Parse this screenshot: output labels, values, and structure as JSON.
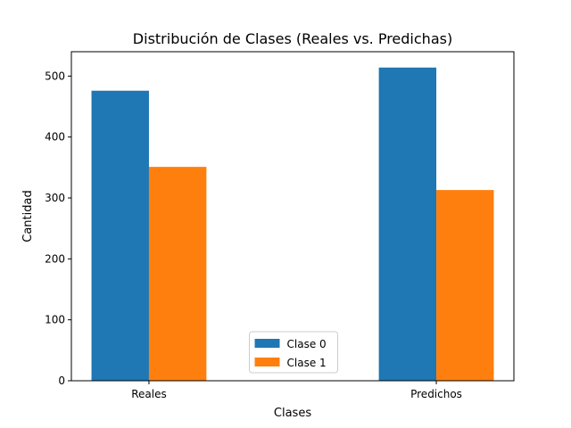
{
  "chart_data": {
    "type": "bar",
    "title": "Distribución de Clases (Reales vs. Predichas)",
    "xlabel": "Clases",
    "ylabel": "Cantidad",
    "categories": [
      "Reales",
      "Predichos"
    ],
    "series": [
      {
        "name": "Clase 0",
        "values": [
          476,
          514
        ],
        "color": "#1f77b4"
      },
      {
        "name": "Clase 1",
        "values": [
          351,
          313
        ],
        "color": "#ff7f0e"
      }
    ],
    "ylim": [
      0,
      540
    ],
    "yticks": [
      0,
      100,
      200,
      300,
      400,
      500
    ],
    "grid": false,
    "legend_position": "bottom-center"
  }
}
